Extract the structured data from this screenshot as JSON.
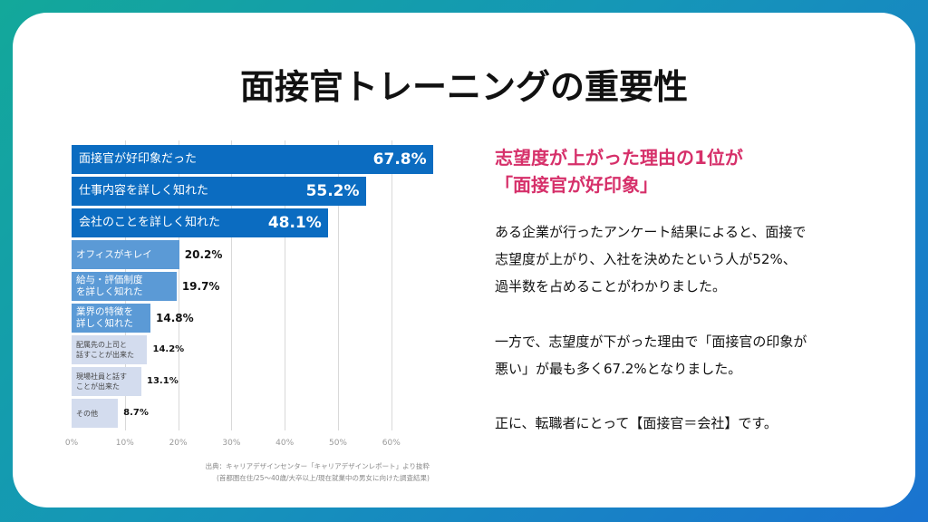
{
  "title": "面接官トレーニングの重要性",
  "chart_data": {
    "type": "bar",
    "orientation": "horizontal",
    "categories": [
      "面接官が好印象だった",
      "仕事内容を詳しく知れた",
      "会社のことを詳しく知れた",
      "オフィスがキレイ",
      "給与・評価制度\nを詳しく知れた",
      "業界の特徴を\n詳しく知れた",
      "配属先の上司と\n話すことが出来た",
      "現場社員と話す\nことが出来た",
      "その他"
    ],
    "values": [
      67.8,
      55.2,
      48.1,
      20.2,
      19.7,
      14.8,
      14.2,
      13.1,
      8.7
    ],
    "value_labels": [
      "67.8%",
      "55.2%",
      "48.1%",
      "20.2%",
      "19.7%",
      "14.8%",
      "14.2%",
      "13.1%",
      "8.7%"
    ],
    "bar_colors": [
      "#0b6cc1",
      "#0b6cc1",
      "#0b6cc1",
      "#5b9ad6",
      "#5b9ad6",
      "#5b9ad6",
      "#d3dcee",
      "#d3dcee",
      "#d3dcee"
    ],
    "xlim": [
      0,
      68
    ],
    "x_ticks": [
      "0%",
      "10%",
      "20%",
      "30%",
      "40%",
      "50%",
      "60%"
    ],
    "grid": true,
    "source": [
      "出典：キャリアデザインセンター「キャリアデザインレポート」より抜粋",
      "(首都圏在住/25〜40歳/大卒以上/現在就業中の男女に向けた調査結果)"
    ]
  },
  "headline": [
    "志望度が上がった理由の1位が",
    "「面接官が好印象」"
  ],
  "paragraphs": [
    "ある企業が行ったアンケート結果によると、面接で\n志望度が上がり、入社を決めたという人が52%、\n過半数を占めることがわかりました。",
    "一方で、志望度が下がった理由で「面接官の印象が\n悪い」が最も多く67.2%となりました。",
    "正に、転職者にとって【面接官＝会社】です。"
  ],
  "colors": {
    "headline": "#d6306a",
    "accent": "#0b6cc1"
  }
}
